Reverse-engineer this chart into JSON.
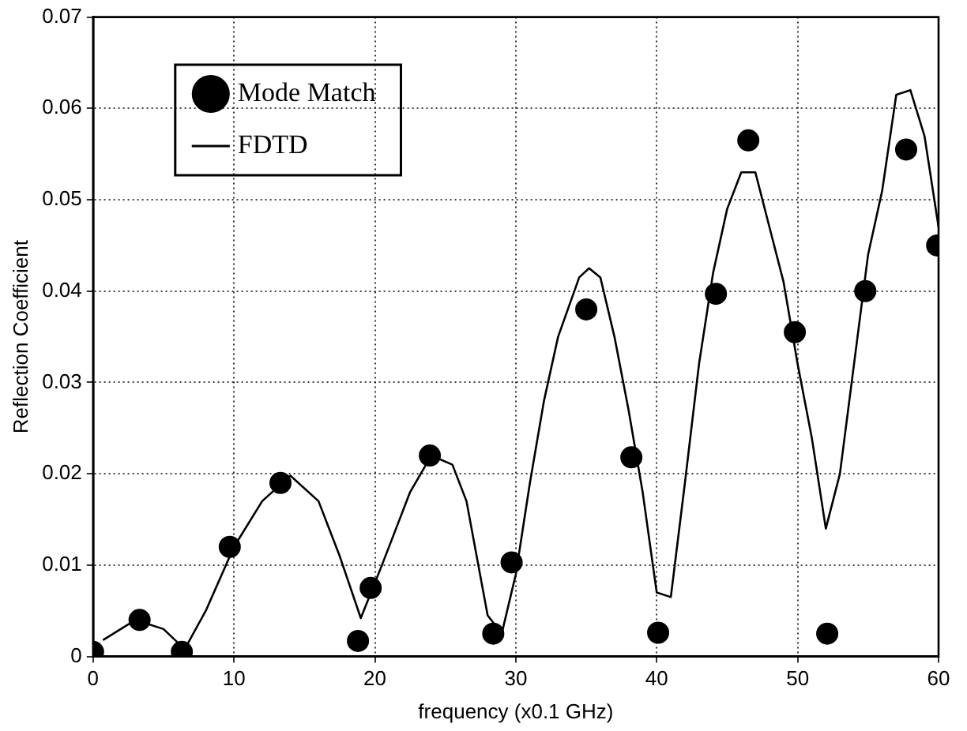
{
  "chart_data": {
    "type": "scatter",
    "xlabel": "frequency (x0.1 GHz)",
    "ylabel": "Reflection Coefficient",
    "xlim": [
      0,
      60
    ],
    "xticks": [
      0,
      10,
      20,
      30,
      40,
      50,
      60
    ],
    "ylim": [
      0,
      0.07
    ],
    "yticks": [
      0,
      0.01,
      0.02,
      0.03,
      0.04,
      0.05,
      0.06,
      0.07
    ],
    "grid": true,
    "legend": "top left",
    "marker": "circle",
    "series": [
      {
        "name": "Mode Match",
        "type": "scatter",
        "color": "#000000",
        "x": [
          0,
          3.3,
          6.3,
          9.7,
          13.3,
          18.8,
          19.7,
          23.9,
          28.4,
          29.7,
          35,
          38.2,
          40.1,
          44.2,
          46.5,
          49.8,
          52.1,
          54.8,
          57.7,
          59.9
        ],
        "values": [
          0.0005,
          0.004,
          0.0005,
          0.012,
          0.019,
          0.0017,
          0.0075,
          0.022,
          0.0025,
          0.0103,
          0.038,
          0.0218,
          0.0026,
          0.0397,
          0.0565,
          0.0355,
          0.0025,
          0.04,
          0.0555,
          0.045
        ]
      },
      {
        "name": "FDTD",
        "type": "line",
        "color": "#000000",
        "marker": "none",
        "line_style": "solid",
        "x": [
          0.7,
          3,
          5,
          6.5,
          8,
          10,
          12,
          14,
          16,
          17.5,
          19,
          20.5,
          22.5,
          24,
          25.5,
          26.5,
          28,
          29,
          30,
          31,
          32,
          33,
          34.5,
          35.2,
          36,
          37,
          38,
          39,
          40,
          41,
          42,
          43,
          44,
          45,
          46,
          47,
          48,
          49,
          50,
          51,
          52,
          53,
          54,
          55,
          56,
          57,
          58,
          59,
          60
        ],
        "values": [
          0.0018,
          0.004,
          0.003,
          0.0008,
          0.005,
          0.012,
          0.017,
          0.0198,
          0.017,
          0.011,
          0.0042,
          0.01,
          0.018,
          0.022,
          0.021,
          0.017,
          0.0045,
          0.0025,
          0.009,
          0.019,
          0.028,
          0.035,
          0.0415,
          0.0425,
          0.0415,
          0.035,
          0.027,
          0.018,
          0.007,
          0.0065,
          0.019,
          0.032,
          0.042,
          0.049,
          0.053,
          0.053,
          0.047,
          0.041,
          0.032,
          0.024,
          0.014,
          0.02,
          0.032,
          0.044,
          0.051,
          0.0615,
          0.062,
          0.057,
          0.047
        ]
      }
    ]
  }
}
